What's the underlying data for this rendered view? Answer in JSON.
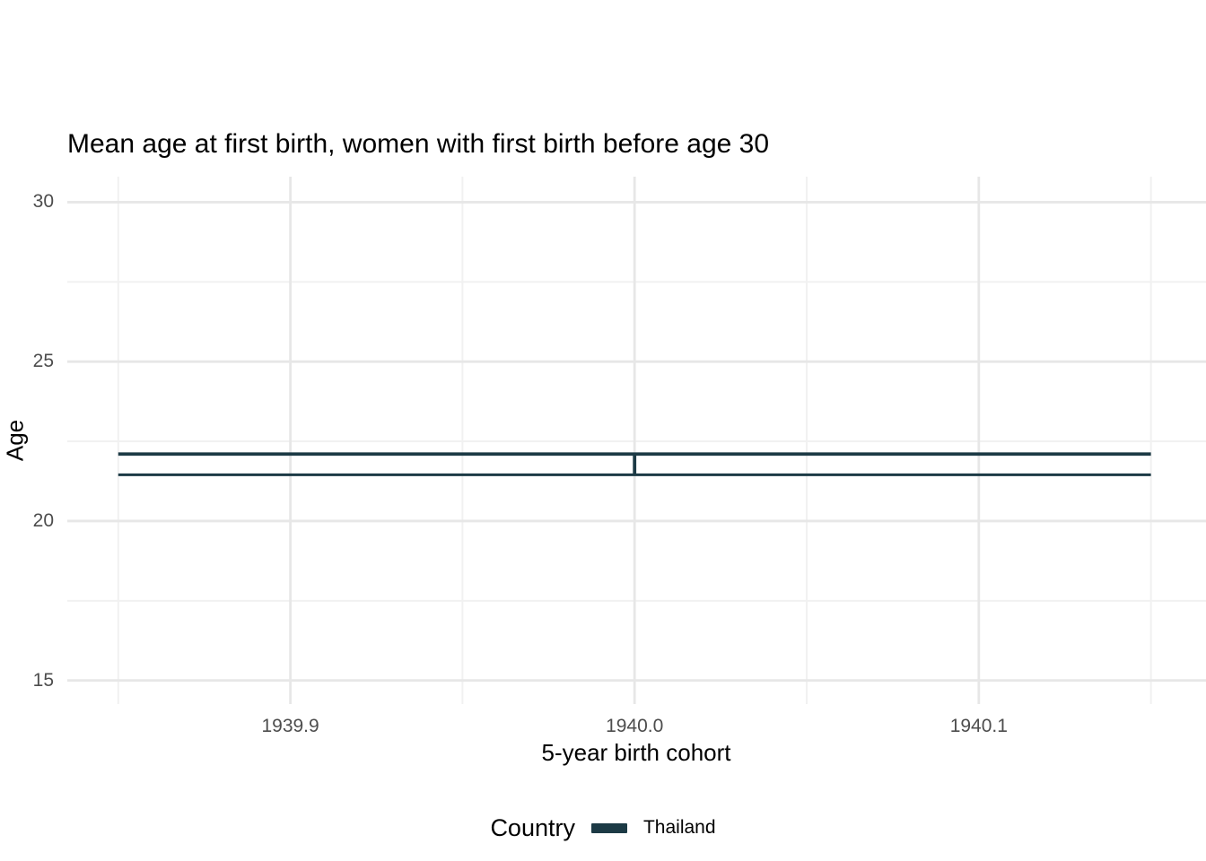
{
  "chart_data": {
    "type": "crossbar",
    "title": "Mean age at first birth, women with first birth before age 30",
    "xlabel": "5-year birth cohort",
    "ylabel": "Age",
    "xlim": [
      1939.8352,
      1940.166
    ],
    "ylim": [
      14.26,
      30.8
    ],
    "x_ticks": [
      {
        "value": 1939.9,
        "label": "1939.9"
      },
      {
        "value": 1940.0,
        "label": "1940.0"
      },
      {
        "value": 1940.1,
        "label": "1940.1"
      }
    ],
    "x_minor_ticks": [
      1939.85,
      1939.95,
      1940.05,
      1940.15
    ],
    "y_ticks": [
      {
        "value": 30,
        "label": "30"
      },
      {
        "value": 25,
        "label": "25"
      },
      {
        "value": 20,
        "label": "20"
      },
      {
        "value": 15,
        "label": "15"
      }
    ],
    "y_minor_ticks": [
      27.5,
      22.5,
      17.5
    ],
    "grid": {
      "show": true,
      "major_color": "#E7E7E7",
      "minor_color": "#F1F1F1"
    },
    "series": [
      {
        "name": "Thailand",
        "color": "#1C3A45",
        "points": [
          {
            "x": 1940.0,
            "y_upper": 22.1,
            "y_lower": 21.45,
            "xmin": 1939.85,
            "xmax": 1940.15
          }
        ]
      }
    ],
    "legend": {
      "title": "Country",
      "position": "bottom",
      "entries": [
        {
          "label": "Thailand",
          "color": "#1C3A45"
        }
      ]
    },
    "text_colors": {
      "title": "#000000",
      "axis_title": "#000000",
      "tick_label": "#4D4D4D"
    }
  }
}
